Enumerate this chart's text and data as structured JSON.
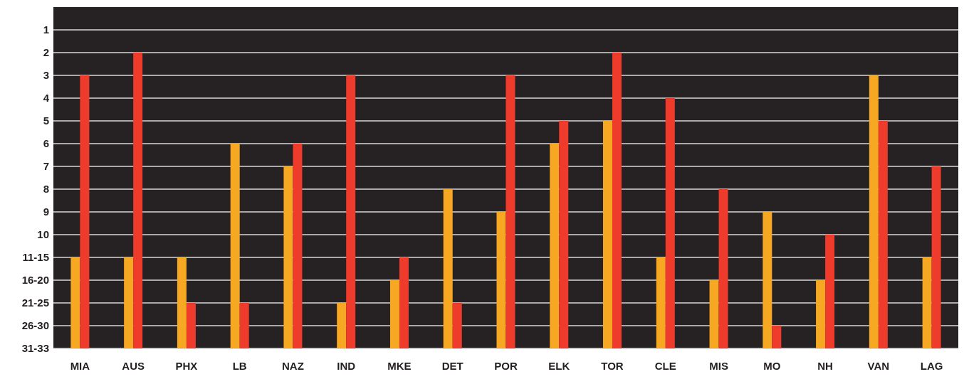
{
  "chart_data": {
    "type": "bar",
    "categories": [
      "MIA",
      "AUS",
      "PHX",
      "LB",
      "NAZ",
      "IND",
      "MKE",
      "DET",
      "POR",
      "ELK",
      "TOR",
      "CLE",
      "MIS",
      "MO",
      "NH",
      "VAN",
      "LAG"
    ],
    "series": [
      {
        "color": "#f7a823",
        "base": [
          15,
          15,
          15,
          15,
          15,
          15,
          15,
          15,
          15,
          15,
          15,
          15,
          15,
          15,
          15,
          15,
          15
        ],
        "values": [
          -4,
          -4,
          -4,
          -9,
          -8,
          -2,
          -3,
          -7,
          -6,
          -9,
          -10,
          -4,
          -3,
          -6,
          -3,
          -12,
          -4
        ]
      },
      {
        "color": "#ee3b2b",
        "base": [
          15,
          15,
          15,
          15,
          15,
          15,
          15,
          15,
          15,
          15,
          15,
          15,
          15,
          15,
          15,
          15,
          15
        ],
        "values": [
          -12,
          -13,
          -2,
          -2,
          -9,
          -12,
          -4,
          -2,
          -12,
          -10,
          -13,
          -11,
          -7,
          -1,
          -5,
          -10,
          -8
        ]
      }
    ],
    "ylim": [
      15,
      0
    ],
    "yticks": [
      {
        "value": 15,
        "label": "31-33"
      },
      {
        "value": 14,
        "label": "26-30"
      },
      {
        "value": 13,
        "label": "21-25"
      },
      {
        "value": 12,
        "label": "16-20"
      },
      {
        "value": 11,
        "label": "11-15"
      },
      10,
      9,
      8,
      7,
      6,
      5,
      4,
      3,
      2,
      1
    ],
    "grid": "y"
  }
}
